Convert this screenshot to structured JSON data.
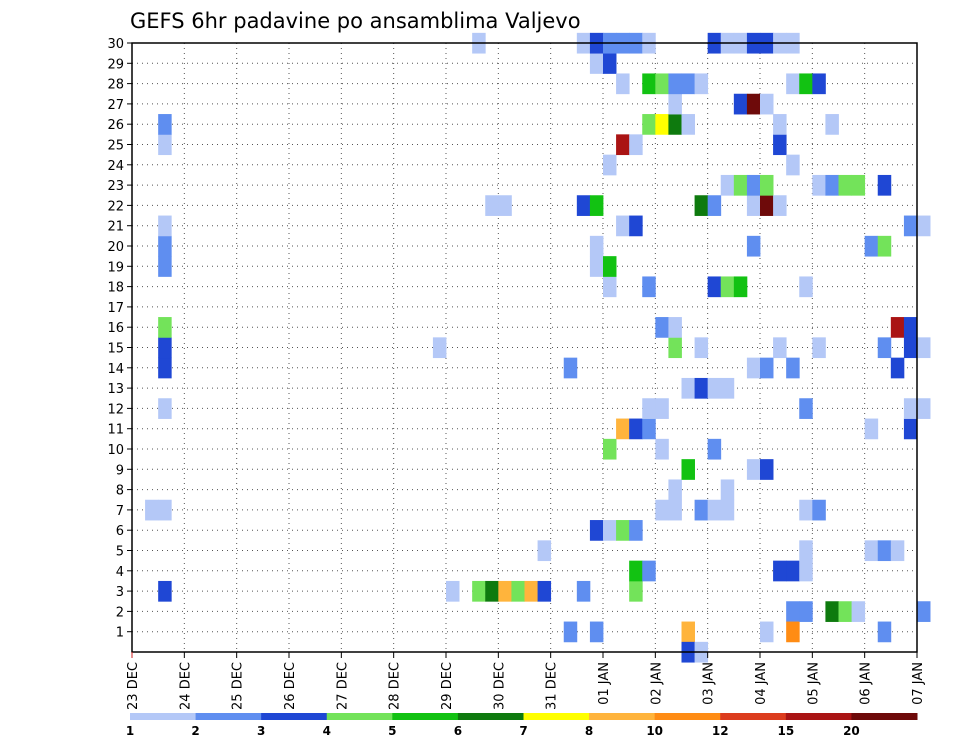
{
  "chart_data": {
    "type": "heatmap",
    "title": "GEFS 6hr padavine po ansamblima Valjevo",
    "xlabel": "",
    "ylabel": "",
    "x_tick_labels": [
      "23 DEC",
      "24 DEC",
      "25 DEC",
      "26 DEC",
      "27 DEC",
      "28 DEC",
      "29 DEC",
      "30 DEC",
      "31 DEC",
      "01 JAN",
      "02 JAN",
      "03 JAN",
      "04 JAN",
      "05 JAN",
      "06 JAN",
      "07 JAN"
    ],
    "y_tick_labels": [
      "1",
      "2",
      "3",
      "4",
      "5",
      "6",
      "7",
      "8",
      "9",
      "10",
      "11",
      "12",
      "13",
      "14",
      "15",
      "16",
      "17",
      "18",
      "19",
      "20",
      "21",
      "22",
      "23",
      "24",
      "25",
      "26",
      "27",
      "28",
      "29",
      "30"
    ],
    "xlim": [
      0,
      60
    ],
    "ylim": [
      0,
      30
    ],
    "grid": true,
    "legend": {
      "position": "bottom",
      "labels": [
        "1",
        "2",
        "3",
        "4",
        "5",
        "6",
        "7",
        "8",
        "10",
        "12",
        "15",
        "20"
      ],
      "colors": [
        "#b4c8f7",
        "#5f8ef0",
        "#1f47d4",
        "#73e35a",
        "#12c212",
        "#0e7a0e",
        "#ffff00",
        "#ffb43c",
        "#ff8c14",
        "#dc3c1e",
        "#aa1414",
        "#6e0a0a"
      ]
    },
    "cells_note": "each cell: [time step (6h, 0 = 23 DEC 00Z), member (1-30), color index]",
    "cells": [
      [
        1,
        7,
        0
      ],
      [
        2,
        7,
        0
      ],
      [
        2,
        3,
        2
      ],
      [
        2,
        12,
        0
      ],
      [
        2,
        14,
        2
      ],
      [
        2,
        15,
        2
      ],
      [
        2,
        16,
        3
      ],
      [
        2,
        19,
        1
      ],
      [
        2,
        20,
        1
      ],
      [
        2,
        21,
        0
      ],
      [
        2,
        25,
        0
      ],
      [
        2,
        26,
        1
      ],
      [
        23,
        15,
        0
      ],
      [
        24,
        3,
        0
      ],
      [
        26,
        3,
        3
      ],
      [
        27,
        3,
        5
      ],
      [
        28,
        3,
        7
      ],
      [
        29,
        3,
        3
      ],
      [
        30,
        3,
        7
      ],
      [
        31,
        3,
        2
      ],
      [
        27,
        22,
        0
      ],
      [
        28,
        22,
        0
      ],
      [
        26,
        30,
        0
      ],
      [
        31,
        5,
        0
      ],
      [
        33,
        1,
        1
      ],
      [
        33,
        14,
        1
      ],
      [
        34,
        3,
        1
      ],
      [
        34,
        22,
        2
      ],
      [
        34,
        30,
        0
      ],
      [
        35,
        1,
        1
      ],
      [
        35,
        6,
        2
      ],
      [
        35,
        19,
        0
      ],
      [
        35,
        20,
        0
      ],
      [
        35,
        22,
        4
      ],
      [
        35,
        29,
        0
      ],
      [
        35,
        30,
        2
      ],
      [
        36,
        6,
        0
      ],
      [
        36,
        10,
        3
      ],
      [
        36,
        18,
        0
      ],
      [
        36,
        19,
        4
      ],
      [
        36,
        24,
        0
      ],
      [
        36,
        29,
        2
      ],
      [
        36,
        30,
        1
      ],
      [
        37,
        6,
        3
      ],
      [
        37,
        11,
        7
      ],
      [
        37,
        21,
        0
      ],
      [
        37,
        25,
        10
      ],
      [
        37,
        28,
        0
      ],
      [
        37,
        30,
        1
      ],
      [
        38,
        3,
        3
      ],
      [
        38,
        4,
        4
      ],
      [
        38,
        6,
        1
      ],
      [
        38,
        11,
        2
      ],
      [
        38,
        21,
        2
      ],
      [
        38,
        25,
        0
      ],
      [
        38,
        30,
        1
      ],
      [
        39,
        11,
        1
      ],
      [
        39,
        12,
        0
      ],
      [
        39,
        4,
        1
      ],
      [
        39,
        18,
        1
      ],
      [
        39,
        26,
        3
      ],
      [
        39,
        28,
        4
      ],
      [
        39,
        30,
        0
      ],
      [
        40,
        10,
        0
      ],
      [
        40,
        12,
        0
      ],
      [
        40,
        16,
        1
      ],
      [
        40,
        7,
        0
      ],
      [
        40,
        26,
        6
      ],
      [
        40,
        28,
        3
      ],
      [
        41,
        7,
        0
      ],
      [
        41,
        8,
        0
      ],
      [
        41,
        15,
        3
      ],
      [
        41,
        16,
        0
      ],
      [
        41,
        26,
        5
      ],
      [
        41,
        27,
        0
      ],
      [
        41,
        28,
        1
      ],
      [
        42,
        9,
        4
      ],
      [
        42,
        13,
        0
      ],
      [
        42,
        1,
        7
      ],
      [
        42,
        26,
        0
      ],
      [
        42,
        28,
        1
      ],
      [
        43,
        7,
        1
      ],
      [
        43,
        13,
        2
      ],
      [
        43,
        15,
        0
      ],
      [
        43,
        22,
        5
      ],
      [
        43,
        28,
        0
      ],
      [
        44,
        18,
        2
      ],
      [
        44,
        22,
        1
      ],
      [
        44,
        13,
        0
      ],
      [
        44,
        7,
        0
      ],
      [
        44,
        10,
        1
      ],
      [
        44,
        30,
        2
      ],
      [
        45,
        7,
        0
      ],
      [
        45,
        8,
        0
      ],
      [
        45,
        13,
        0
      ],
      [
        45,
        18,
        3
      ],
      [
        45,
        23,
        0
      ],
      [
        45,
        30,
        0
      ],
      [
        46,
        18,
        4
      ],
      [
        46,
        23,
        3
      ],
      [
        46,
        27,
        2
      ],
      [
        46,
        30,
        0
      ],
      [
        47,
        14,
        0
      ],
      [
        47,
        9,
        0
      ],
      [
        47,
        20,
        1
      ],
      [
        47,
        22,
        0
      ],
      [
        47,
        23,
        1
      ],
      [
        47,
        27,
        11
      ],
      [
        47,
        30,
        2
      ],
      [
        48,
        14,
        1
      ],
      [
        48,
        22,
        11
      ],
      [
        48,
        23,
        3
      ],
      [
        48,
        27,
        0
      ],
      [
        48,
        30,
        2
      ],
      [
        48,
        9,
        2
      ],
      [
        48,
        1,
        0
      ],
      [
        49,
        4,
        2
      ],
      [
        49,
        15,
        0
      ],
      [
        49,
        22,
        0
      ],
      [
        49,
        25,
        2
      ],
      [
        49,
        26,
        0
      ],
      [
        49,
        30,
        0
      ],
      [
        50,
        4,
        2
      ],
      [
        50,
        14,
        1
      ],
      [
        50,
        2,
        1
      ],
      [
        50,
        1,
        8
      ],
      [
        50,
        24,
        0
      ],
      [
        50,
        28,
        0
      ],
      [
        50,
        30,
        0
      ],
      [
        51,
        2,
        1
      ],
      [
        51,
        4,
        0
      ],
      [
        51,
        5,
        0
      ],
      [
        51,
        7,
        0
      ],
      [
        51,
        12,
        1
      ],
      [
        51,
        18,
        0
      ],
      [
        51,
        28,
        4
      ],
      [
        52,
        7,
        1
      ],
      [
        52,
        15,
        0
      ],
      [
        52,
        23,
        0
      ],
      [
        52,
        28,
        2
      ],
      [
        53,
        2,
        5
      ],
      [
        53,
        23,
        1
      ],
      [
        53,
        26,
        0
      ],
      [
        54,
        2,
        3
      ],
      [
        54,
        23,
        3
      ],
      [
        55,
        2,
        0
      ],
      [
        55,
        23,
        3
      ],
      [
        56,
        5,
        0
      ],
      [
        56,
        11,
        0
      ],
      [
        56,
        20,
        1
      ],
      [
        57,
        5,
        1
      ],
      [
        57,
        1,
        1
      ],
      [
        57,
        15,
        1
      ],
      [
        57,
        20,
        3
      ],
      [
        57,
        23,
        2
      ],
      [
        58,
        5,
        0
      ],
      [
        58,
        14,
        2
      ],
      [
        58,
        16,
        10
      ],
      [
        59,
        11,
        2
      ],
      [
        59,
        12,
        0
      ],
      [
        59,
        15,
        2
      ],
      [
        59,
        16,
        2
      ],
      [
        59,
        21,
        1
      ],
      [
        60,
        2,
        1
      ],
      [
        60,
        12,
        0
      ],
      [
        60,
        15,
        0
      ],
      [
        60,
        21,
        0
      ],
      [
        42,
        0,
        2
      ],
      [
        43,
        0,
        0
      ]
    ]
  }
}
